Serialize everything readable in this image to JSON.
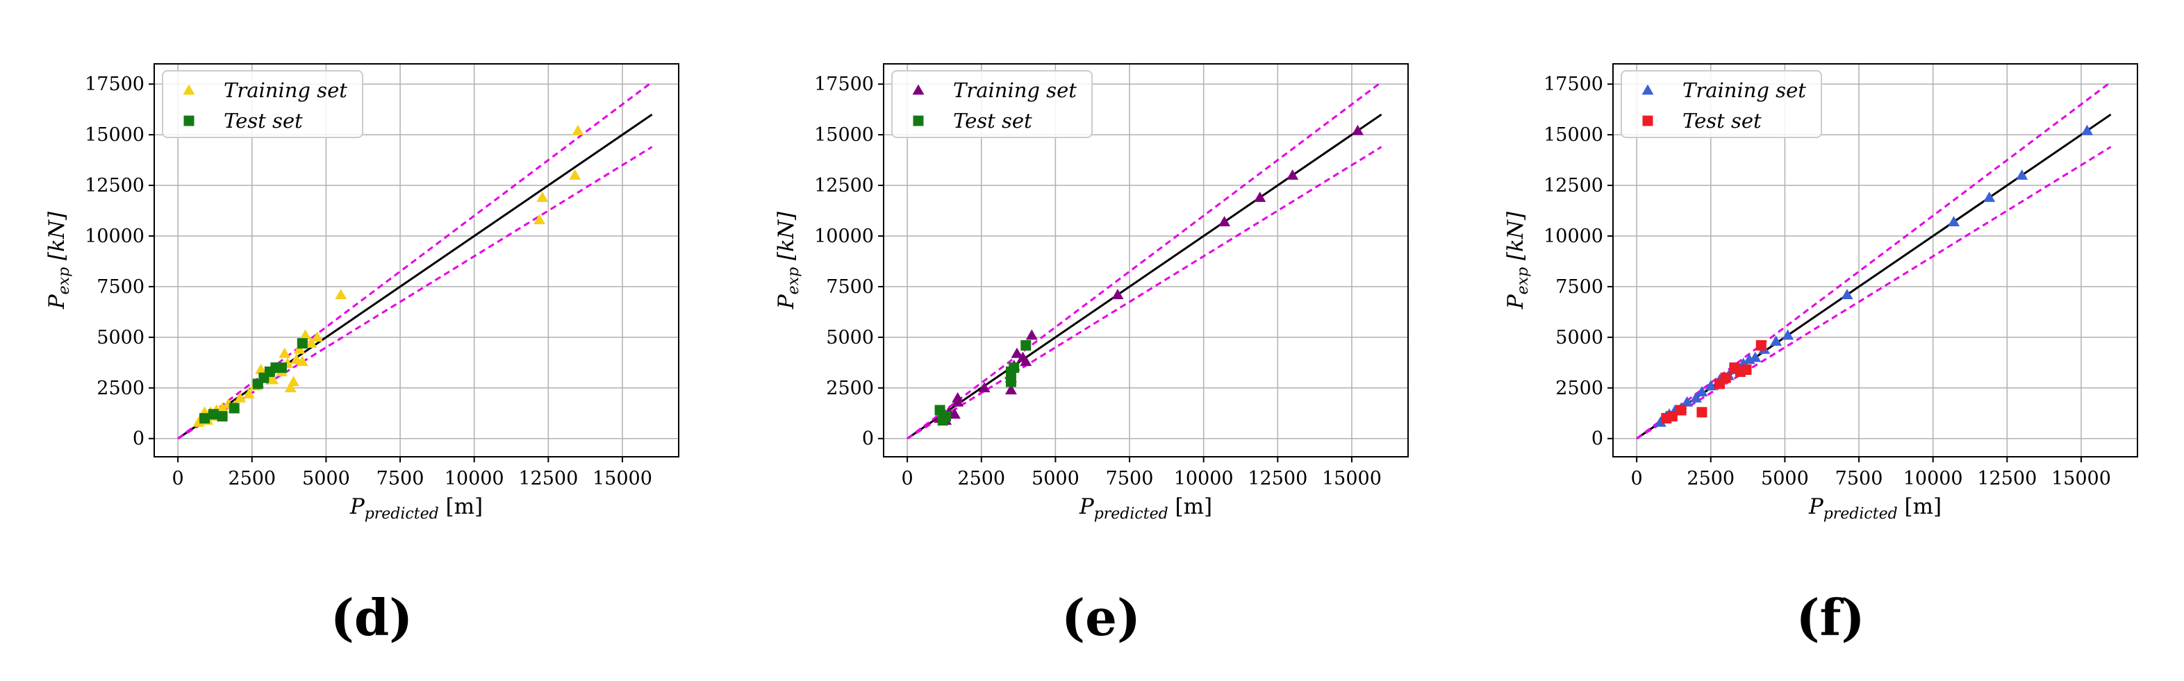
{
  "chart_data": [
    {
      "type": "scatter",
      "panel_label": "(d)",
      "xlabel": "P_predicted [m]",
      "ylabel": "P_exp [kN]",
      "xlim": [
        -800,
        16900
      ],
      "ylim": [
        -900,
        18500
      ],
      "xticks": [
        0,
        2500,
        5000,
        7500,
        10000,
        12500,
        15000
      ],
      "yticks": [
        0,
        2500,
        5000,
        7500,
        10000,
        12500,
        15000,
        17500
      ],
      "grid": true,
      "legend_position": "top-left",
      "reference_lines": {
        "identity": [
          0,
          16000
        ],
        "band_factors": [
          1.1,
          0.9
        ],
        "identity_color": "#000000",
        "band_color": "#e600e6"
      },
      "series": [
        {
          "name": "Training set",
          "marker": "triangle",
          "color": "#f5d016",
          "x": [
            700,
            800,
            900,
            1000,
            1100,
            1200,
            1300,
            1500,
            1700,
            1900,
            2100,
            2400,
            2600,
            2800,
            3000,
            3200,
            3300,
            3500,
            3600,
            3700,
            3800,
            3900,
            4000,
            4100,
            4200,
            4300,
            4500,
            4700,
            5500,
            12200,
            12300,
            13400,
            13500
          ],
          "y": [
            800,
            1000,
            1300,
            900,
            1300,
            1100,
            1400,
            1500,
            1700,
            1600,
            2000,
            2200,
            2600,
            3400,
            3100,
            2900,
            3500,
            3300,
            4200,
            3700,
            2500,
            2800,
            3900,
            4400,
            3800,
            5100,
            4700,
            5000,
            7100,
            10800,
            11900,
            13000,
            15200
          ]
        },
        {
          "name": "Test set",
          "marker": "square",
          "color": "#137a13",
          "x": [
            900,
            1200,
            1500,
            1900,
            2700,
            2900,
            3100,
            3300,
            3500,
            4200
          ],
          "y": [
            1000,
            1200,
            1100,
            1500,
            2700,
            3000,
            3300,
            3500,
            3500,
            4700
          ]
        }
      ]
    },
    {
      "type": "scatter",
      "panel_label": "(e)",
      "xlabel": "P_predicted [m]",
      "ylabel": "P_exp [kN]",
      "xlim": [
        -800,
        16900
      ],
      "ylim": [
        -900,
        18500
      ],
      "xticks": [
        0,
        2500,
        5000,
        7500,
        10000,
        12500,
        15000
      ],
      "yticks": [
        0,
        2500,
        5000,
        7500,
        10000,
        12500,
        15000,
        17500
      ],
      "grid": true,
      "legend_position": "top-left",
      "reference_lines": {
        "identity": [
          0,
          16000
        ],
        "band_factors": [
          1.1,
          0.9
        ],
        "identity_color": "#000000",
        "band_color": "#e600e6"
      },
      "series": [
        {
          "name": "Training set",
          "marker": "triangle",
          "color": "#800080",
          "x": [
            1100,
            1200,
            1300,
            1400,
            1600,
            1700,
            1700,
            2600,
            3500,
            3500,
            3600,
            3700,
            3900,
            4000,
            4200,
            7100,
            10700,
            11900,
            13000,
            15200
          ],
          "y": [
            1000,
            1200,
            900,
            1300,
            1200,
            1800,
            2000,
            2500,
            2400,
            3000,
            3600,
            4200,
            4000,
            3800,
            5100,
            7100,
            10700,
            11900,
            13000,
            15200
          ]
        },
        {
          "name": "Test set",
          "marker": "square",
          "color": "#137a13",
          "x": [
            1100,
            1200,
            1300,
            3500,
            3500,
            3600,
            4000
          ],
          "y": [
            1400,
            900,
            1100,
            2800,
            3300,
            3500,
            4600
          ]
        }
      ]
    },
    {
      "type": "scatter",
      "panel_label": "(f)",
      "xlabel": "P_predicted [m]",
      "ylabel": "P_exp [kN]",
      "xlim": [
        -800,
        16900
      ],
      "ylim": [
        -900,
        18500
      ],
      "xticks": [
        0,
        2500,
        5000,
        7500,
        10000,
        12500,
        15000
      ],
      "yticks": [
        0,
        2500,
        5000,
        7500,
        10000,
        12500,
        15000,
        17500
      ],
      "grid": true,
      "legend_position": "top-left",
      "reference_lines": {
        "identity": [
          0,
          16000
        ],
        "band_factors": [
          1.1,
          0.9
        ],
        "identity_color": "#000000",
        "band_color": "#e600e6"
      },
      "series": [
        {
          "name": "Training set",
          "marker": "triangle",
          "color": "#3b62d6",
          "x": [
            800,
            900,
            1000,
            1100,
            1300,
            1500,
            1700,
            2000,
            2200,
            2500,
            2800,
            3100,
            3300,
            3600,
            3800,
            4000,
            4300,
            4700,
            5100,
            7100,
            10700,
            11900,
            13000,
            15200
          ],
          "y": [
            800,
            1000,
            1100,
            1200,
            1400,
            1500,
            1800,
            2000,
            2300,
            2600,
            2900,
            3100,
            3400,
            3700,
            3900,
            4000,
            4400,
            4800,
            5100,
            7100,
            10700,
            11900,
            13000,
            15200
          ]
        },
        {
          "name": "Test set",
          "marker": "square",
          "color": "#ee1c24",
          "x": [
            1000,
            1200,
            1500,
            2200,
            2800,
            3000,
            3300,
            3500,
            3700,
            4200
          ],
          "y": [
            1000,
            1100,
            1400,
            1300,
            2700,
            3000,
            3500,
            3300,
            3400,
            4600
          ]
        }
      ]
    }
  ]
}
